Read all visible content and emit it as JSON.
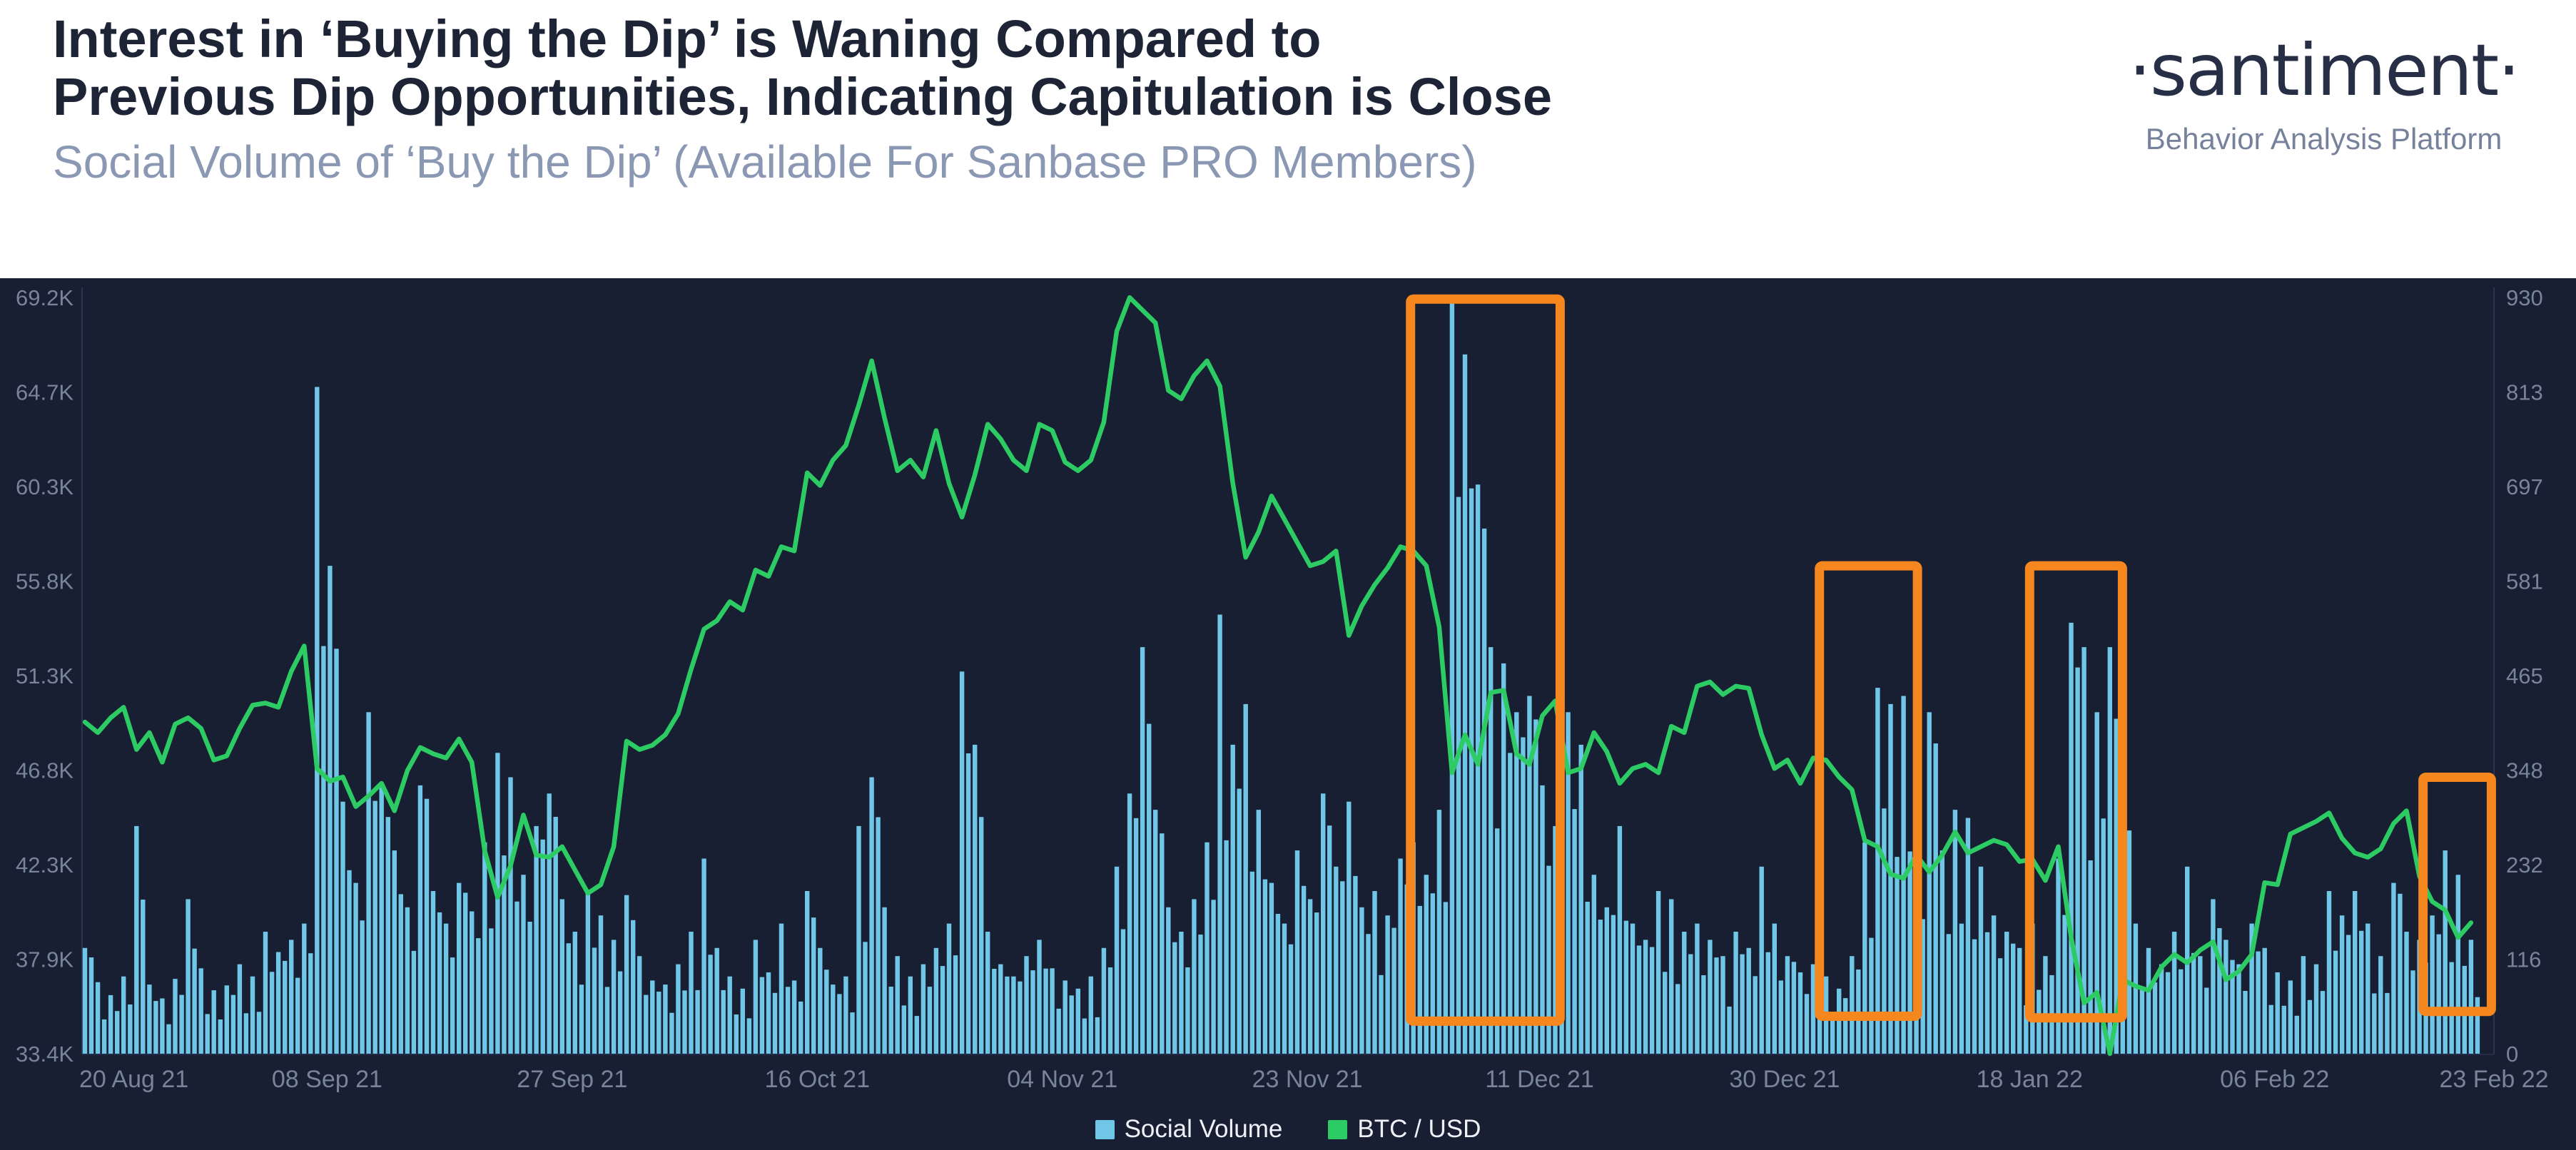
{
  "header": {
    "title_line1": "Interest in ‘Buying the Dip’ is Waning Compared to",
    "title_line2": "Previous Dip Opportunities, Indicating Capitulation is Close",
    "subtitle": "Social Volume of ‘Buy the Dip’ (Available For Sanbase PRO Members)",
    "logo": "·santiment·",
    "logo_tagline": "Behavior Analysis Platform"
  },
  "colors": {
    "panel_bg": "#181f32",
    "header_bg": "#ffffff",
    "title": "#1d2436",
    "subtitle": "#8b98b4",
    "bars": "#6fc6e6",
    "line": "#2dcb64",
    "highlight": "#f6871e",
    "axis_line": "#2b3452",
    "axis_text": "#78839c",
    "legend_text": "#eef1f7"
  },
  "legend": [
    {
      "label": "Social Volume",
      "color": "#6fc6e6"
    },
    {
      "label": "BTC / USD",
      "color": "#2dcb64"
    }
  ],
  "chart_data": {
    "type": "bar+line",
    "start_date": "20 Aug 21",
    "end_date": "23 Feb 22",
    "grid": "off",
    "legend_position": "bottom-center",
    "x_tick_labels": [
      {
        "label": "20 Aug 21",
        "day": 0
      },
      {
        "label": "08 Sep 21",
        "day": 19
      },
      {
        "label": "27 Sep 21",
        "day": 38
      },
      {
        "label": "16 Oct 21",
        "day": 57
      },
      {
        "label": "04 Nov 21",
        "day": 76
      },
      {
        "label": "23 Nov 21",
        "day": 95
      },
      {
        "label": "11 Dec 21",
        "day": 113
      },
      {
        "label": "30 Dec 21",
        "day": 132
      },
      {
        "label": "18 Jan 22",
        "day": 151
      },
      {
        "label": "06 Feb 22",
        "day": 170
      },
      {
        "label": "23 Feb 22",
        "day": 187
      }
    ],
    "left_axis": {
      "min": 33.4,
      "max": 69.2,
      "unit": "K USD",
      "ticks": [
        "69.2K",
        "64.7K",
        "60.3K",
        "55.8K",
        "51.3K",
        "46.8K",
        "42.3K",
        "37.9K",
        "33.4K"
      ]
    },
    "right_axis": {
      "min": 0,
      "max": 930,
      "ticks": [
        "930",
        "813",
        "697",
        "581",
        "465",
        "348",
        "232",
        "116",
        "0"
      ]
    },
    "series": [
      {
        "name": "Social Volume",
        "type": "bar",
        "axis": "right",
        "color": "#6fc6e6",
        "values": [
          130,
          88,
          72,
          95,
          280,
          85,
          68,
          92,
          190,
          105,
          78,
          84,
          110,
          95,
          150,
          125,
          140,
          160,
          820,
          600,
          310,
          210,
          420,
          330,
          250,
          180,
          330,
          200,
          160,
          210,
          175,
          260,
          370,
          340,
          220,
          280,
          320,
          190,
          150,
          200,
          170,
          140,
          195,
          120,
          90,
          85,
          110,
          150,
          240,
          130,
          95,
          80,
          140,
          100,
          160,
          90,
          200,
          130,
          85,
          95,
          280,
          340,
          180,
          120,
          95,
          110,
          130,
          160,
          470,
          380,
          150,
          110,
          95,
          120,
          140,
          105,
          90,
          80,
          95,
          130,
          230,
          320,
          500,
          300,
          180,
          150,
          190,
          260,
          540,
          380,
          430,
          300,
          210,
          160,
          250,
          190,
          320,
          230,
          310,
          180,
          200,
          170,
          240,
          260,
          220,
          300,
          930,
          860,
          700,
          500,
          480,
          420,
          440,
          330,
          280,
          420,
          380,
          220,
          180,
          280,
          160,
          140,
          200,
          190,
          150,
          160,
          140,
          120,
          150,
          130,
          230,
          160,
          120,
          100,
          110,
          95,
          80,
          120,
          260,
          450,
          430,
          440,
          320,
          420,
          250,
          300,
          290,
          230,
          170,
          150,
          130,
          160,
          120,
          240,
          530,
          500,
          420,
          500,
          350,
          160,
          130,
          110,
          150,
          230,
          120,
          190,
          140,
          110,
          160,
          130,
          100,
          90,
          120,
          110,
          200,
          170,
          200,
          160,
          120,
          210,
          150,
          140,
          170,
          250,
          220,
          140
        ]
      },
      {
        "name": "BTC / USD",
        "type": "line",
        "axis": "left",
        "color": "#2dcb64",
        "unit": "K",
        "values": [
          49.1,
          48.6,
          49.3,
          49.8,
          47.8,
          48.6,
          47.2,
          49.0,
          49.3,
          48.8,
          47.3,
          47.5,
          48.8,
          49.9,
          50.0,
          49.8,
          51.5,
          52.7,
          46.9,
          46.3,
          46.5,
          45.1,
          45.6,
          46.2,
          44.9,
          46.8,
          47.9,
          47.6,
          47.4,
          48.3,
          47.2,
          43.0,
          40.8,
          42.3,
          44.7,
          42.8,
          42.7,
          43.2,
          42.1,
          41.0,
          41.4,
          43.2,
          48.2,
          47.8,
          48.0,
          48.5,
          49.5,
          51.6,
          53.5,
          53.9,
          54.8,
          54.4,
          56.3,
          56.0,
          57.4,
          57.2,
          60.9,
          60.3,
          61.5,
          62.2,
          64.1,
          66.2,
          63.5,
          61.0,
          61.5,
          60.7,
          62.9,
          60.4,
          58.8,
          60.8,
          63.2,
          62.5,
          61.5,
          61.0,
          63.2,
          62.9,
          61.4,
          61.0,
          61.5,
          63.3,
          67.6,
          69.2,
          68.6,
          68.0,
          64.8,
          64.4,
          65.5,
          66.2,
          65.0,
          60.4,
          56.9,
          58.1,
          59.8,
          58.7,
          57.6,
          56.5,
          56.7,
          57.2,
          53.2,
          54.6,
          55.6,
          56.4,
          57.4,
          57.2,
          56.5,
          53.6,
          46.7,
          48.5,
          47.1,
          50.5,
          50.6,
          47.6,
          47.1,
          49.4,
          50.1,
          46.7,
          46.9,
          48.6,
          47.7,
          46.2,
          46.9,
          47.1,
          46.7,
          48.9,
          48.6,
          50.8,
          51.0,
          50.4,
          50.8,
          50.7,
          48.5,
          46.9,
          47.3,
          46.2,
          47.4,
          47.3,
          46.5,
          45.9,
          43.5,
          43.2,
          41.9,
          41.7,
          42.8,
          42.0,
          42.8,
          43.9,
          42.9,
          43.2,
          43.5,
          43.3,
          42.5,
          42.6,
          41.6,
          43.2,
          38.9,
          35.8,
          36.3,
          33.4,
          36.9,
          36.6,
          36.4,
          37.5,
          38.1,
          37.7,
          38.3,
          38.7,
          36.9,
          37.3,
          38.1,
          41.5,
          41.4,
          43.8,
          44.1,
          44.4,
          44.8,
          43.6,
          42.9,
          42.7,
          43.1,
          44.3,
          44.9,
          41.8,
          40.6,
          40.2,
          38.9,
          39.6
        ]
      }
    ],
    "highlight_boxes": [
      {
        "name": "dip-dec-04",
        "day_start": 103.0,
        "day_end": 114.6,
        "value_top": 928,
        "value_bottom": 40
      },
      {
        "name": "dip-jan-06",
        "day_start": 134.7,
        "day_end": 142.3,
        "value_top": 600,
        "value_bottom": 46
      },
      {
        "name": "dip-jan-21",
        "day_start": 151.0,
        "day_end": 158.2,
        "value_top": 600,
        "value_bottom": 44
      },
      {
        "name": "dip-feb-19",
        "day_start": 181.5,
        "day_end": 186.8,
        "value_top": 340,
        "value_bottom": 52
      }
    ]
  }
}
